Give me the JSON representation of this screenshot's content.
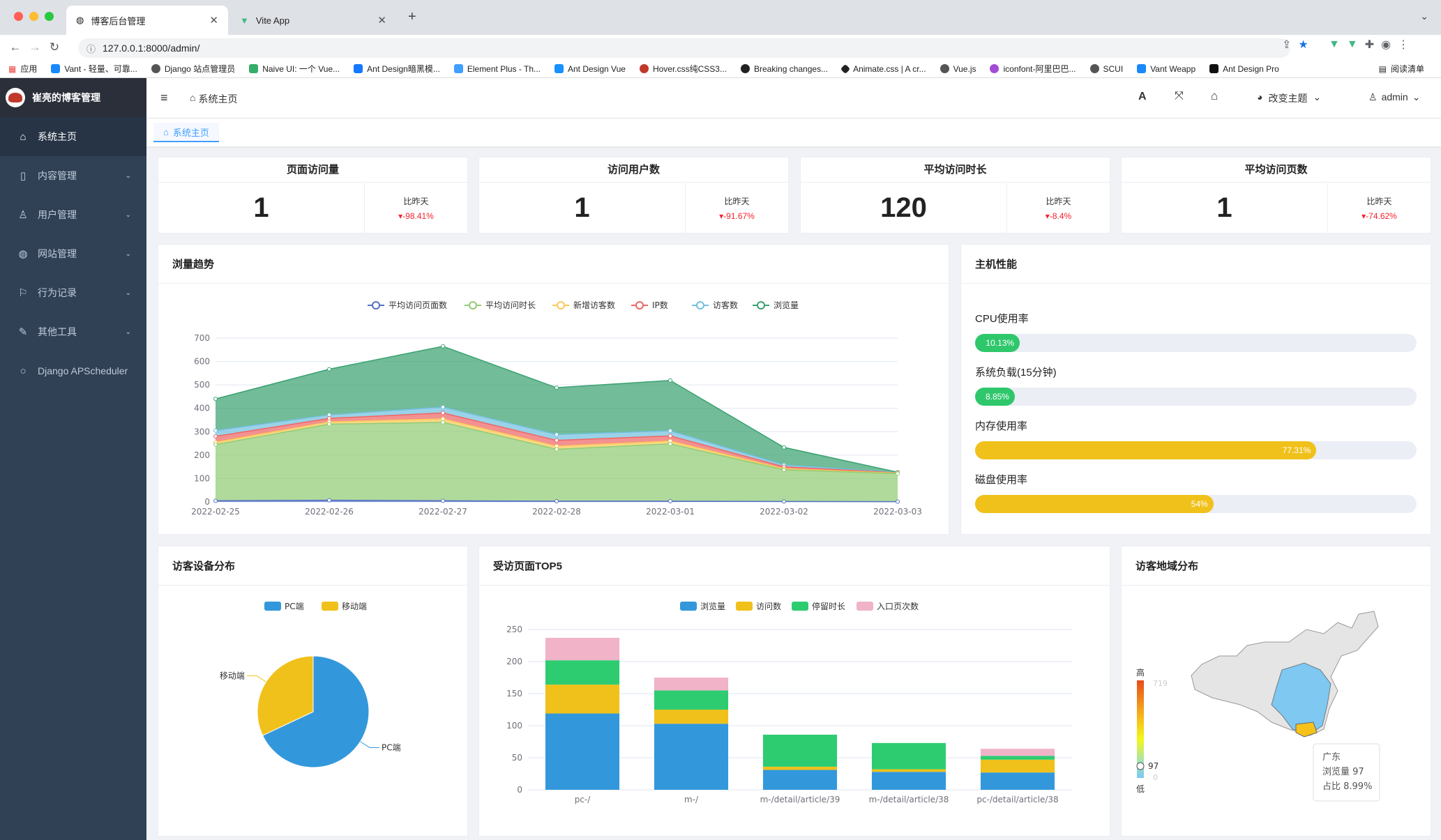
{
  "browser": {
    "tabs": [
      {
        "title": "博客后台管理"
      },
      {
        "title": "Vite App"
      }
    ],
    "url": "127.0.0.1:8000/admin/",
    "bookmarks": [
      "应用",
      "Vant - 轻量、可靠...",
      "Django 站点管理员",
      "Naive UI: 一个 Vue...",
      "Ant Design暗黑模...",
      "Element Plus - Th...",
      "Ant Design Vue",
      "Hover.css纯CSS3...",
      "Breaking changes...",
      "Animate.css | A cr...",
      "Vue.js",
      "iconfont-阿里巴巴...",
      "SCUI",
      "Vant Weapp",
      "Ant Design Pro"
    ],
    "reading_list": "阅读清单"
  },
  "sidebar": {
    "title": "崔亮的博客管理",
    "items": [
      {
        "label": "系统主页",
        "icon": "home-icon"
      },
      {
        "label": "内容管理",
        "icon": "file-icon"
      },
      {
        "label": "用户管理",
        "icon": "user-icon"
      },
      {
        "label": "网站管理",
        "icon": "globe-icon"
      },
      {
        "label": "行为记录",
        "icon": "bookmark-icon"
      },
      {
        "label": "其他工具",
        "icon": "wrench-icon"
      },
      {
        "label": "Django APScheduler",
        "icon": "circle-icon"
      }
    ]
  },
  "header": {
    "breadcrumb": "系统主页",
    "theme": "改变主题",
    "user": "admin",
    "tag": "系统主页"
  },
  "stats": [
    {
      "title": "页面访问量",
      "value": "1",
      "cmp_label": "比昨天",
      "change": "-98.41%"
    },
    {
      "title": "访问用户数",
      "value": "1",
      "cmp_label": "比昨天",
      "change": "-91.67%"
    },
    {
      "title": "平均访问时长",
      "value": "120",
      "cmp_label": "比昨天",
      "change": "-8.4%"
    },
    {
      "title": "平均访问页数",
      "value": "1",
      "cmp_label": "比昨天",
      "change": "-74.62%"
    }
  ],
  "trend": {
    "title": "浏量趋势"
  },
  "perf": {
    "title": "主机性能",
    "items": [
      {
        "label": "CPU使用率",
        "value": 10.13,
        "text": "10.13%",
        "color": "#2fc76b"
      },
      {
        "label": "系统负载(15分钟)",
        "value": 8.85,
        "text": "8.85%",
        "color": "#2fc76b"
      },
      {
        "label": "内存使用率",
        "value": 77.31,
        "text": "77.31%",
        "color": "#f0c11a"
      },
      {
        "label": "磁盘使用率",
        "value": 54,
        "text": "54%",
        "color": "#f0c11a"
      }
    ]
  },
  "device": {
    "title": "访客设备分布"
  },
  "top5": {
    "title": "受访页面TOP5"
  },
  "region": {
    "title": "访客地域分布",
    "high": "高",
    "low": "低",
    "max": "719",
    "min": "0",
    "current": "97",
    "tooltip": {
      "name": "广东",
      "line1": "浏览量 97",
      "line2": "占比 8.99%"
    }
  },
  "chart_data": [
    {
      "type": "area",
      "x": [
        "2022-02-25",
        "2022-02-26",
        "2022-02-27",
        "2022-02-28",
        "2022-03-01",
        "2022-03-02",
        "2022-03-03"
      ],
      "ylim": [
        0,
        700
      ],
      "yticks": [
        0,
        100,
        200,
        300,
        400,
        500,
        600,
        700
      ],
      "series": [
        {
          "name": "平均访问页面数",
          "color": "#5470c6",
          "values": [
            5,
            7,
            5,
            3,
            3,
            2,
            1
          ]
        },
        {
          "name": "平均访问时长",
          "color": "#91cc75",
          "values": [
            240,
            325,
            335,
            222,
            245,
            135,
            120
          ]
        },
        {
          "name": "新增访客数",
          "color": "#fac858",
          "values": [
            10,
            10,
            15,
            13,
            12,
            5,
            2
          ]
        },
        {
          "name": "IP数",
          "color": "#ee6666",
          "values": [
            25,
            15,
            25,
            25,
            22,
            8,
            1
          ]
        },
        {
          "name": "访客数",
          "color": "#73c0de",
          "values": [
            25,
            15,
            25,
            25,
            22,
            8,
            1
          ]
        },
        {
          "name": "浏览量",
          "color": "#3ba272",
          "values": [
            135,
            195,
            260,
            200,
            215,
            75,
            2
          ]
        }
      ]
    },
    {
      "type": "pie",
      "legend": [
        "PC端",
        "移动端"
      ],
      "labels": [
        "PC端",
        "移动端"
      ],
      "colors": [
        "#3398db",
        "#f0c11a"
      ],
      "values": [
        68,
        32
      ]
    },
    {
      "type": "bar",
      "categories": [
        "pc-/",
        "m-/",
        "m-/detail/article/39",
        "m-/detail/article/38",
        "pc-/detail/article/38"
      ],
      "ylim": [
        0,
        250
      ],
      "yticks": [
        0,
        50,
        100,
        150,
        200,
        250
      ],
      "series": [
        {
          "name": "浏览量",
          "color": "#3398db",
          "values": [
            119,
            103,
            31,
            28,
            27
          ]
        },
        {
          "name": "访问数",
          "color": "#f0c11a",
          "values": [
            45,
            22,
            5,
            4,
            20
          ]
        },
        {
          "name": "停留时长",
          "color": "#2ecc71",
          "values": [
            38,
            30,
            50,
            41,
            6
          ]
        },
        {
          "name": "入口页次数",
          "color": "#f0b3c8",
          "values": [
            35,
            20,
            0,
            0,
            11
          ]
        }
      ]
    }
  ]
}
